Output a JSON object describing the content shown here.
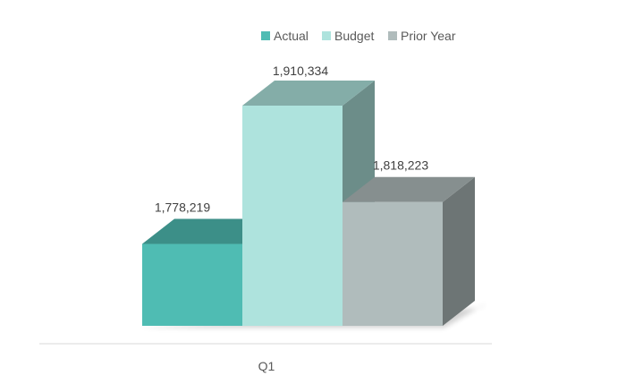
{
  "chart_data": {
    "type": "bar",
    "style": "3d-clustered-column",
    "title": "",
    "xlabel": "",
    "ylabel": "",
    "categories": [
      "Q1"
    ],
    "series": [
      {
        "name": "Actual",
        "values": [
          1778219
        ],
        "label": "1,778,219",
        "color": "#4fbcb3"
      },
      {
        "name": "Budget",
        "values": [
          1910334
        ],
        "label": "1,910,334",
        "color": "#aee3dd"
      },
      {
        "name": "Prior Year",
        "values": [
          1818223
        ],
        "label": "1,818,223",
        "color": "#b0bcbc"
      }
    ],
    "ylim": [
      1700000,
      1960000
    ],
    "legend": "top-right",
    "grid": false,
    "data_labels": true
  }
}
